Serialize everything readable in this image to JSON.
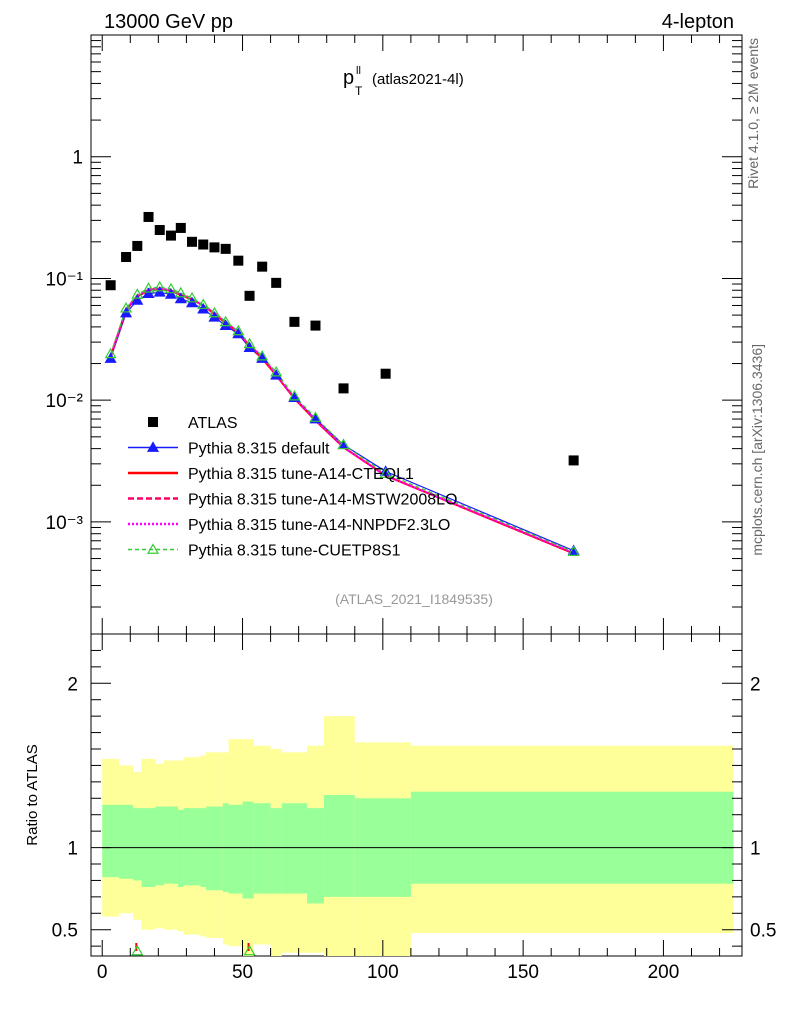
{
  "header": {
    "left": "13000 GeV pp",
    "right": "4-lepton",
    "obs_main": "p",
    "obs_sup": "ll",
    "obs_sub": "T",
    "obs_tag": "(atlas2021-4l)",
    "side_top": "Rivet 4.1.0, ≥ 2M events",
    "side_bottom": "mcplots.cern.ch [arXiv:1306.3436]",
    "analysis_id": "(ATLAS_2021_I1849535)"
  },
  "colors": {
    "data": "#000000",
    "default": "#1a1aff",
    "a14_cteql1": "#ff0000",
    "a14_mstw": "#ff0066",
    "a14_nnpdf": "#ff00ff",
    "cuetp8s1": "#33cc33",
    "band_inner": "#99ff99",
    "band_outer": "#ffff99"
  },
  "chart_data": [
    {
      "type": "scatter",
      "yscale": "log",
      "xlim": [
        -4,
        228
      ],
      "ylim": [
        0.00012,
        10
      ],
      "ytick_labels": [
        "10⁻³",
        "10⁻²",
        "10⁻¹",
        "1"
      ],
      "ytick_values": [
        0.001,
        0.01,
        0.1,
        1
      ],
      "legend_position": "middle-left",
      "series": [
        {
          "name": "ATLAS",
          "style": "square-marker",
          "x": [
            3,
            8.5,
            12.5,
            16.5,
            20.5,
            24.5,
            28,
            32,
            36,
            40,
            44,
            48.5,
            52.5,
            57,
            62,
            68.5,
            76,
            86,
            101,
            168
          ],
          "y": [
            0.088,
            0.15,
            0.185,
            0.32,
            0.25,
            0.225,
            0.26,
            0.2,
            0.19,
            0.18,
            0.175,
            0.14,
            0.072,
            0.125,
            0.092,
            0.044,
            0.041,
            0.0125,
            0.0165,
            0.0032
          ]
        },
        {
          "name": "Pythia 8.315 default",
          "style": "solid-line-filled-triangle",
          "x": [
            3,
            8.5,
            12.5,
            16.5,
            20.5,
            24.5,
            28,
            32,
            36,
            40,
            44,
            48.5,
            52.5,
            57,
            62,
            68.5,
            76,
            86,
            101,
            168
          ],
          "y": [
            0.022,
            0.052,
            0.066,
            0.075,
            0.077,
            0.074,
            0.068,
            0.063,
            0.056,
            0.048,
            0.041,
            0.035,
            0.027,
            0.022,
            0.016,
            0.0105,
            0.007,
            0.0043,
            0.0026,
            0.00058
          ]
        },
        {
          "name": "Pythia 8.315 tune-A14-CTEQL1",
          "style": "solid-line",
          "x": [
            3,
            8.5,
            12.5,
            16.5,
            20.5,
            24.5,
            28,
            32,
            36,
            40,
            44,
            48.5,
            52.5,
            57,
            62,
            68.5,
            76,
            86,
            101,
            168
          ],
          "y": [
            0.023,
            0.055,
            0.071,
            0.08,
            0.082,
            0.079,
            0.073,
            0.067,
            0.06,
            0.051,
            0.043,
            0.036,
            0.028,
            0.022,
            0.016,
            0.0103,
            0.0068,
            0.0041,
            0.0024,
            0.00055
          ]
        },
        {
          "name": "Pythia 8.315 tune-A14-MSTW2008LO",
          "style": "dashed-line",
          "x": [
            3,
            8.5,
            12.5,
            16.5,
            20.5,
            24.5,
            28,
            32,
            36,
            40,
            44,
            48.5,
            52.5,
            57,
            62,
            68.5,
            76,
            86,
            101,
            168
          ],
          "y": [
            0.023,
            0.055,
            0.072,
            0.081,
            0.083,
            0.08,
            0.074,
            0.068,
            0.06,
            0.052,
            0.044,
            0.036,
            0.028,
            0.023,
            0.016,
            0.0104,
            0.0068,
            0.0041,
            0.0024,
            0.00055
          ]
        },
        {
          "name": "Pythia 8.315 tune-A14-NNPDF2.3LO",
          "style": "dotted-line",
          "x": [
            3,
            8.5,
            12.5,
            16.5,
            20.5,
            24.5,
            28,
            32,
            36,
            40,
            44,
            48.5,
            52.5,
            57,
            62,
            68.5,
            76,
            86,
            101,
            168
          ],
          "y": [
            0.023,
            0.056,
            0.072,
            0.081,
            0.083,
            0.08,
            0.074,
            0.068,
            0.06,
            0.052,
            0.044,
            0.036,
            0.028,
            0.023,
            0.016,
            0.0104,
            0.0069,
            0.0041,
            0.0024,
            0.00056
          ]
        },
        {
          "name": "Pythia 8.315 tune-CUETP8S1",
          "style": "dashed-line-open-triangle",
          "x": [
            3,
            8.5,
            12.5,
            16.5,
            20.5,
            24.5,
            28,
            32,
            36,
            40,
            44,
            48.5,
            52.5,
            57,
            62,
            68.5,
            76,
            86,
            101,
            168
          ],
          "y": [
            0.024,
            0.057,
            0.074,
            0.083,
            0.085,
            0.082,
            0.076,
            0.069,
            0.061,
            0.052,
            0.044,
            0.037,
            0.029,
            0.023,
            0.017,
            0.0108,
            0.0072,
            0.0043,
            0.0025,
            0.00057
          ]
        }
      ]
    },
    {
      "type": "area",
      "ylabel": "Ratio to ATLAS",
      "xlim": [
        -4,
        228
      ],
      "ylim": [
        0.34,
        2.3
      ],
      "xtick_labels": [
        "0",
        "50",
        "100",
        "150",
        "200"
      ],
      "xtick_values": [
        0,
        50,
        100,
        150,
        200
      ],
      "ytick_labels": [
        "0.5",
        "1",
        "2"
      ],
      "ytick_values": [
        0.5,
        1,
        2
      ],
      "reference_line": 1,
      "bin_edges": [
        0,
        6,
        11,
        14,
        19,
        22,
        27,
        29,
        35,
        37,
        43,
        45,
        50,
        54,
        60,
        64,
        73,
        79,
        90,
        110,
        225
      ],
      "inner_band": {
        "name": "stat uncertainty",
        "low": [
          0.82,
          0.81,
          0.8,
          0.76,
          0.77,
          0.78,
          0.76,
          0.77,
          0.76,
          0.74,
          0.73,
          0.72,
          0.69,
          0.72,
          0.72,
          0.72,
          0.66,
          0.7,
          0.7,
          0.78
        ],
        "high": [
          1.26,
          1.26,
          1.24,
          1.24,
          1.25,
          1.25,
          1.23,
          1.24,
          1.24,
          1.25,
          1.27,
          1.26,
          1.28,
          1.27,
          1.24,
          1.27,
          1.24,
          1.32,
          1.3,
          1.34
        ]
      },
      "outer_band": {
        "name": "total uncertainty",
        "low": [
          0.58,
          0.6,
          0.56,
          0.5,
          0.51,
          0.5,
          0.49,
          0.47,
          0.46,
          0.45,
          0.41,
          0.4,
          0.26,
          0.41,
          0.34,
          0.36,
          0.36,
          0.28,
          0.28,
          0.48
        ],
        "high": [
          1.54,
          1.5,
          1.46,
          1.54,
          1.51,
          1.53,
          1.53,
          1.55,
          1.56,
          1.58,
          1.58,
          1.66,
          1.66,
          1.62,
          1.6,
          1.58,
          1.62,
          1.8,
          1.64,
          1.62
        ]
      },
      "offscale_markers": [
        {
          "series": "Pythia 8.315 tune-CUETP8S1",
          "x": 12.5,
          "y": 0.34
        },
        {
          "series": "Pythia 8.315 tune-CUETP8S1",
          "x": 52.5,
          "y": 0.34
        }
      ]
    }
  ]
}
